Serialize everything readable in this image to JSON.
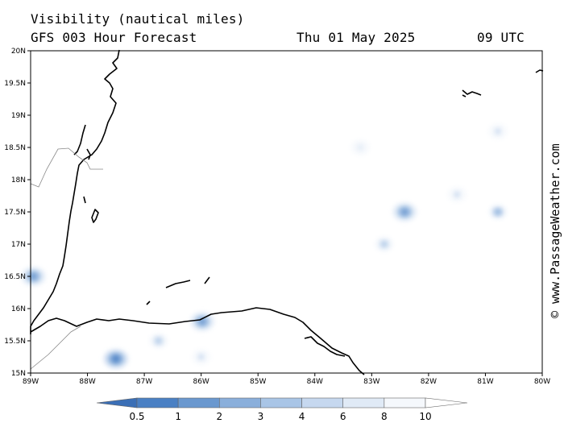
{
  "header": {
    "title": "Visibility (nautical miles)",
    "subtitle": "GFS 003 Hour Forecast",
    "date": "Thu 01 May 2025",
    "time": "09 UTC"
  },
  "credit": "© www.PassageWeather.com",
  "map": {
    "lat_labels": [
      "20N",
      "19.5N",
      "19N",
      "18.5N",
      "18N",
      "17.5N",
      "17N",
      "16.5N",
      "16N",
      "15.5N",
      "15N"
    ],
    "lon_labels": [
      "89W",
      "88W",
      "87W",
      "86W",
      "85W",
      "84W",
      "83W",
      "82W",
      "81W",
      "80W"
    ]
  },
  "colorbar": {
    "labels": [
      "0.5",
      "1",
      "2",
      "3",
      "4",
      "6",
      "8",
      "10"
    ],
    "colors": [
      "#3b6fb6",
      "#4a80c4",
      "#6a98cf",
      "#8aafdb",
      "#a9c5e6",
      "#c6d8ef",
      "#e0eaf6",
      "#f5f8fc",
      "#ffffff"
    ]
  },
  "visibility_patches": [
    {
      "name": "west-coast",
      "lat": 16.5,
      "lon": -88.95,
      "level": "2"
    },
    {
      "name": "gulf-honduras-south",
      "lat": 15.22,
      "lon": -87.5,
      "level": "1"
    },
    {
      "name": "honduras-coast",
      "lat": 15.8,
      "lon": -85.98,
      "level": "2"
    },
    {
      "name": "near-ceiba",
      "lat": 15.5,
      "lon": -86.75,
      "level": "4"
    },
    {
      "name": "inland-honduras",
      "lat": 15.25,
      "lon": -86.0,
      "level": "6"
    },
    {
      "name": "central-sea",
      "lat": 17.5,
      "lon": -82.42,
      "level": "2"
    },
    {
      "name": "east-sea",
      "lat": 17.5,
      "lon": -80.78,
      "level": "3"
    },
    {
      "name": "south-central",
      "lat": 17.0,
      "lon": -82.78,
      "level": "4"
    },
    {
      "name": "northeast",
      "lat": 17.77,
      "lon": -81.5,
      "level": "6"
    },
    {
      "name": "far-northeast",
      "lat": 18.75,
      "lon": -80.78,
      "level": "6"
    },
    {
      "name": "north-central",
      "lat": 18.5,
      "lon": -83.2,
      "level": "8"
    }
  ]
}
